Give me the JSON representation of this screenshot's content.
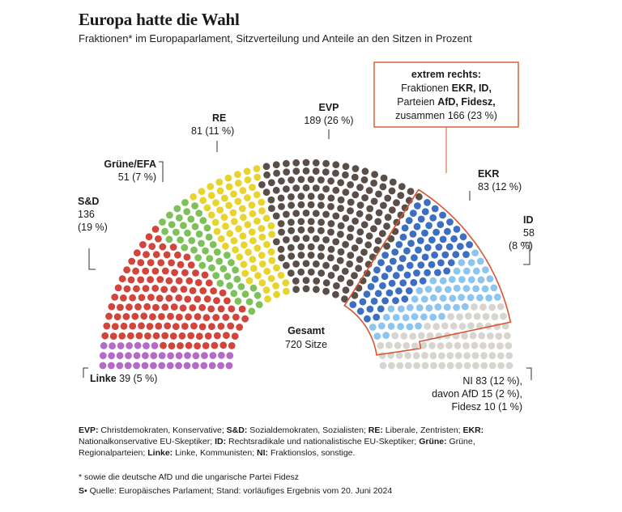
{
  "header": {
    "title": "Europa hatte die Wahl",
    "subtitle": "Fraktionen* im Europaparlament, Sitzverteilung und Anteile an den Sitzen in Prozent"
  },
  "chart_data": {
    "type": "parliament",
    "total_seats": 720,
    "center_label": "Gesamt",
    "center_value": "720 Sitze",
    "series": [
      {
        "name": "Linke",
        "seats": 39,
        "label_name": "Linke",
        "label_value": "39 (5 %)",
        "color": "#b46bc8"
      },
      {
        "name": "S&D",
        "seats": 136,
        "label_name": "S&D",
        "label_value": "136",
        "label_pct": "(19 %)",
        "color": "#d1453b"
      },
      {
        "name": "Grüne/EFA",
        "seats": 51,
        "label_name": "Grüne/EFA",
        "label_value": "51 (7 %)",
        "color": "#7cc15a"
      },
      {
        "name": "RE",
        "seats": 81,
        "label_name": "RE",
        "label_value": "81 (11 %)",
        "color": "#e8d42e"
      },
      {
        "name": "EVP",
        "seats": 189,
        "label_name": "EVP",
        "label_value": "189 (26 %)",
        "color": "#5a4f48"
      },
      {
        "name": "EKR",
        "seats": 83,
        "label_name": "EKR",
        "label_value": "83 (12 %)",
        "color": "#3c6fc1"
      },
      {
        "name": "ID",
        "seats": 58,
        "label_name": "ID",
        "label_value": "58",
        "label_pct": "(8 %)",
        "color": "#8cc6ef"
      },
      {
        "name": "NI",
        "seats": 83,
        "label_value": "NI 83 (12 %),",
        "label_sub1": "davon AfD 15 (2 %),",
        "label_sub2": "Fidesz 10 (1 %)",
        "color": "#d8d5d0"
      }
    ],
    "annotation": {
      "title": "extrem rechts:",
      "line1_pre": "Fraktionen ",
      "line1_bold": "EKR, ID,",
      "line2_pre": "Parteien ",
      "line2_bold": "AfD, Fidesz,",
      "line3": "zusammen 166 (23 %)",
      "color": "#d8552f"
    }
  },
  "legend": {
    "evp_key": "EVP:",
    "evp_text": " Christdemokraten, Konservative; ",
    "sd_key": "S&D:",
    "sd_text": " Sozialdemokraten, Sozialisten; ",
    "re_key": "RE:",
    "re_text": " Liberale, Zentristen; ",
    "ekr_key": "EKR:",
    "ekr_text": " Nationalkonservative EU-Skeptiker; ",
    "id_key": "ID:",
    "id_text": " Rechtsradikale und nationalistische EU-Skeptiker; ",
    "gruene_key": "Grüne:",
    "gruene_text": " Grüne, Regionalparteien; ",
    "linke_key": "Linke:",
    "linke_text": " Linke, Kommunisten; ",
    "ni_key": "NI:",
    "ni_text": " Fraktionslos, sonstige."
  },
  "footnotes": {
    "note": "* sowie die deutsche AfD und die ungarische Partei Fidesz",
    "logo": "S",
    "source": "• Quelle: Europäisches Parlament; Stand: vorläufiges Ergebnis vom 20. Juni 2024"
  }
}
